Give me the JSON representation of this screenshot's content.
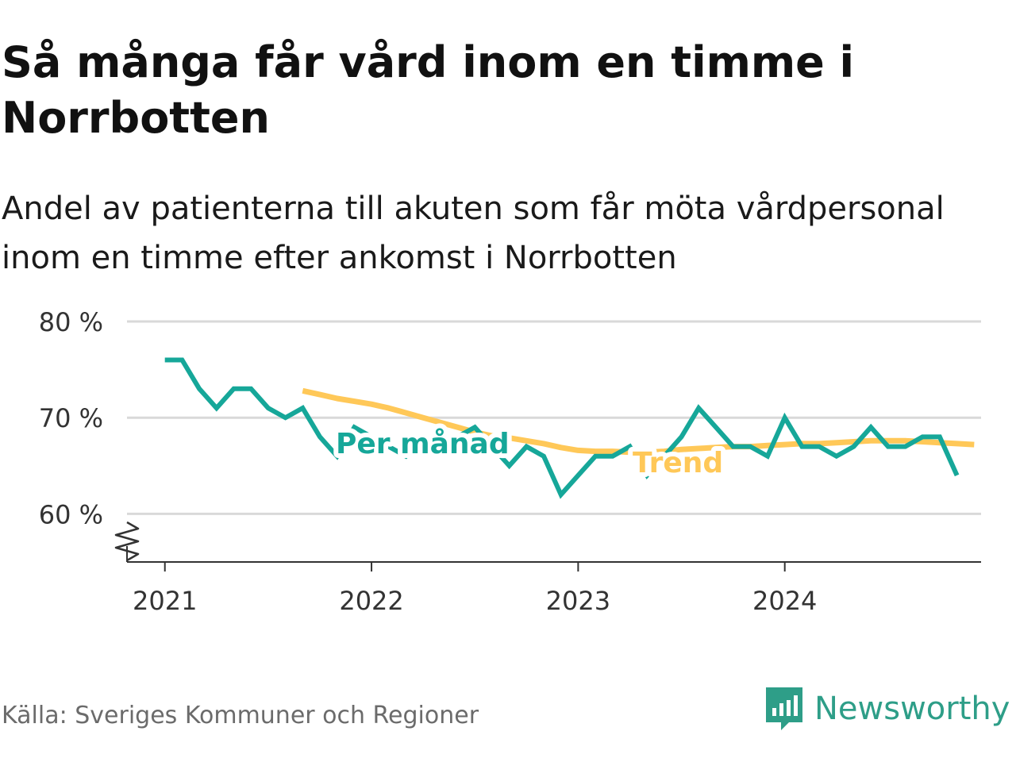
{
  "title": "Så många får vård inom en timme i Norrbotten",
  "subtitle": "Andel av patienterna till akuten som får möta vårdpersonal inom en timme efter ankomst i Norrbotten",
  "source": "Källa: Sveriges Kommuner och Regioner",
  "brand": {
    "name": "Newsworthy",
    "icon": "newsworthy-logo-icon"
  },
  "colors": {
    "monthly": "#16a799",
    "trend": "#ffc858",
    "grid": "#d9d9d9",
    "axis": "#333333",
    "text": "#333333"
  },
  "chart_data": {
    "type": "line",
    "x_unit": "months from January 2021",
    "ylim": [
      55,
      80
    ],
    "y_axis_break": true,
    "y_ticks": [
      {
        "value": 60,
        "label": "60 %"
      },
      {
        "value": 70,
        "label": "70 %"
      },
      {
        "value": 80,
        "label": "80 %"
      }
    ],
    "x_ticks": [
      {
        "value": 0,
        "label": "2021"
      },
      {
        "value": 12,
        "label": "2022"
      },
      {
        "value": 24,
        "label": "2023"
      },
      {
        "value": 36,
        "label": "2024"
      }
    ],
    "xlim": [
      -2.2,
      47.4
    ],
    "grid": true,
    "series": [
      {
        "name": "Per månad",
        "key": "monthly",
        "x_start": 0,
        "values": [
          76,
          76,
          73,
          71,
          73,
          73,
          71,
          70,
          71,
          68,
          66,
          69,
          68,
          67,
          66,
          68,
          67,
          68,
          69,
          67,
          65,
          67,
          66,
          62,
          64,
          66,
          66,
          67,
          64,
          66,
          68,
          71,
          69,
          67,
          67,
          66,
          70,
          67,
          67,
          66,
          67,
          69,
          67,
          67,
          68,
          68,
          64
        ]
      },
      {
        "name": "Trend",
        "key": "trend",
        "x_start": 8,
        "values": [
          72.8,
          72.4,
          72.0,
          71.7,
          71.4,
          71.0,
          70.5,
          70.0,
          69.5,
          69.0,
          68.5,
          68.1,
          67.9,
          67.6,
          67.3,
          66.9,
          66.6,
          66.5,
          66.5,
          66.4,
          66.4,
          66.5,
          66.7,
          66.8,
          66.9,
          67.0,
          67.0,
          67.1,
          67.2,
          67.3,
          67.3,
          67.4,
          67.5,
          67.6,
          67.6,
          67.6,
          67.5,
          67.4,
          67.3,
          67.2
        ]
      }
    ]
  }
}
